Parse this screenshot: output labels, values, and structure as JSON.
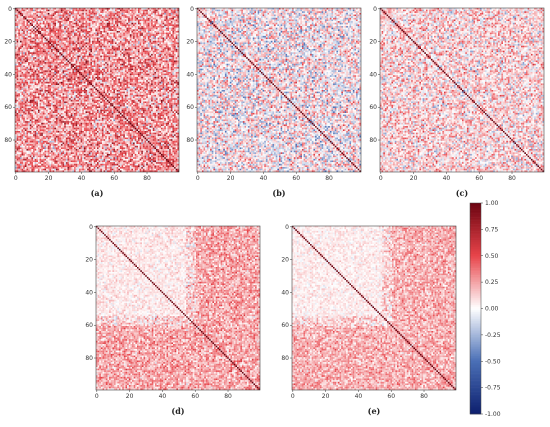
{
  "chart_data": {
    "type": "heatmap",
    "matrix_size": 100,
    "diagonal_value": 1.0,
    "color_scale": {
      "min": -1.0,
      "max": 1.0,
      "colors": [
        "#0d1f6e",
        "#4a6fb6",
        "#ffffff",
        "#e8444a",
        "#6b0310"
      ]
    },
    "colorbar_ticks": [
      "1.00",
      "0.75",
      "0.50",
      "0.25",
      "0.00",
      "-0.25",
      "-0.50",
      "-0.75",
      "-1.00"
    ],
    "axis_ticks": [
      "0",
      "20",
      "40",
      "60",
      "80"
    ],
    "x_tick_labels_panels_abc": [
      "0",
      "20",
      "40",
      "60",
      "80"
    ],
    "panels": [
      {
        "label": "(a)",
        "description_mean": 0.3,
        "spread": 0.45
      },
      {
        "label": "(b)",
        "description_mean": 0.02,
        "spread": 0.4
      },
      {
        "label": "(c)",
        "description_mean": 0.1,
        "spread": 0.35
      },
      {
        "label": "(d)",
        "description_mean": 0.12,
        "spread": 0.25
      },
      {
        "label": "(e)",
        "description_mean": 0.1,
        "spread": 0.22
      }
    ]
  }
}
